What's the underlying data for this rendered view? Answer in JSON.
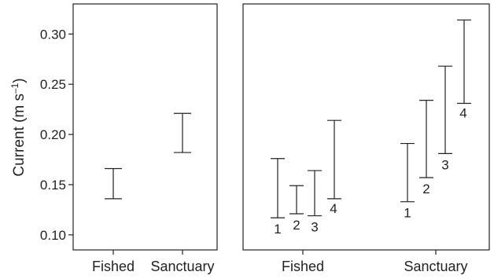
{
  "chart_data": [
    {
      "type": "errorbar",
      "ylabel_main": "Current (m s",
      "ylabel_sup": "–1",
      "ylabel_close": ")",
      "ylim": [
        0.085,
        0.33
      ],
      "yticks": [
        0.1,
        0.15,
        0.2,
        0.25,
        0.3
      ],
      "ytick_labels": [
        "0.10",
        "0.15",
        "0.20",
        "0.25",
        "0.30"
      ],
      "categories": [
        "Fished",
        "Sanctuary"
      ],
      "series": [
        {
          "category": "Fished",
          "low": 0.136,
          "high": 0.166
        },
        {
          "category": "Sanctuary",
          "low": 0.182,
          "high": 0.221
        }
      ]
    },
    {
      "type": "errorbar",
      "ylim": [
        0.085,
        0.33
      ],
      "categories": [
        "Fished",
        "Sanctuary"
      ],
      "series": [
        {
          "group": "Fished",
          "label": "1",
          "low": 0.117,
          "high": 0.176
        },
        {
          "group": "Fished",
          "label": "2",
          "low": 0.121,
          "high": 0.149
        },
        {
          "group": "Fished",
          "label": "3",
          "low": 0.119,
          "high": 0.164
        },
        {
          "group": "Fished",
          "label": "4",
          "low": 0.136,
          "high": 0.214
        },
        {
          "group": "Sanctuary",
          "label": "1",
          "low": 0.133,
          "high": 0.191
        },
        {
          "group": "Sanctuary",
          "label": "2",
          "low": 0.157,
          "high": 0.234
        },
        {
          "group": "Sanctuary",
          "label": "3",
          "low": 0.181,
          "high": 0.268
        },
        {
          "group": "Sanctuary",
          "label": "4",
          "low": 0.231,
          "high": 0.314
        }
      ]
    }
  ]
}
